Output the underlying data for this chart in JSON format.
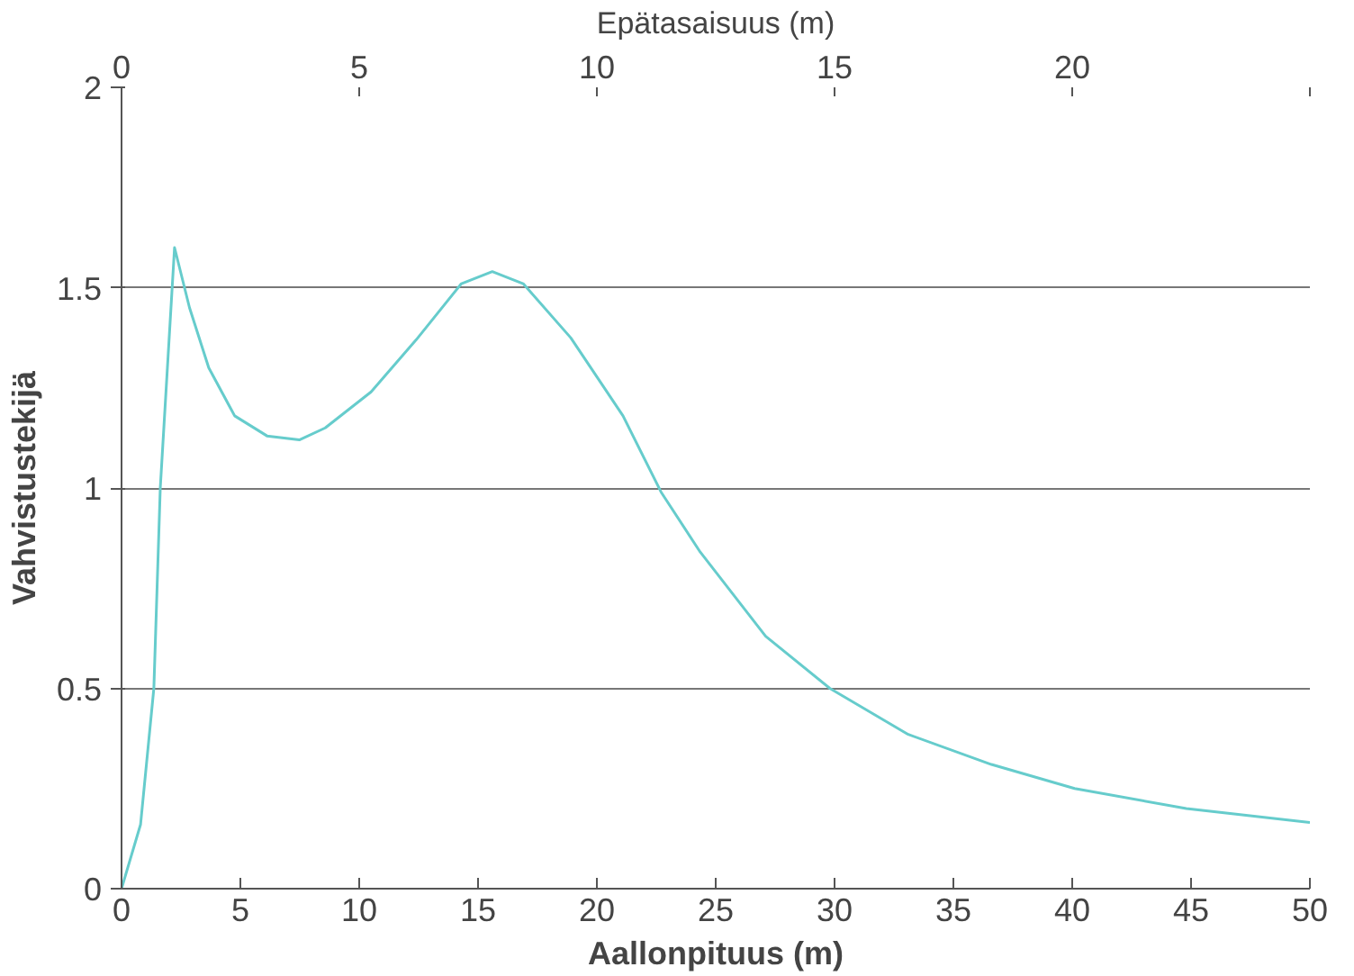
{
  "chart_data": {
    "type": "line",
    "xlabel": "Aallonpituus (m)",
    "x2label": "Epätasaisuus (m)",
    "ylabel": "Vahvistustekijä",
    "xlim": [
      0,
      50
    ],
    "xticks": [
      0,
      5,
      10,
      15,
      20,
      25,
      30,
      35,
      40,
      45,
      50
    ],
    "x2lim": [
      0,
      25
    ],
    "x2ticks": [
      0,
      5,
      10,
      15,
      20,
      {
        "value": 25,
        "label": null
      }
    ],
    "ylim": [
      0,
      2
    ],
    "yticks": [
      0,
      0.5,
      1,
      1.5,
      2
    ],
    "grid": "y",
    "marker": "none",
    "line_style": "solid",
    "series": [
      {
        "color": "#66cccc",
        "x": [
          0,
          0.8,
          1.36,
          1.63,
          2.23,
          2.86,
          3.67,
          4.76,
          6.12,
          7.48,
          8.57,
          10.5,
          12.4,
          14.3,
          15.6,
          16.9,
          18.9,
          21.1,
          22.7,
          24.35,
          27.1,
          29.8,
          33.1,
          36.6,
          40.1,
          44.8,
          50
        ],
        "values": [
          0,
          0.16,
          0.5,
          1.0,
          1.6,
          1.45,
          1.3,
          1.18,
          1.13,
          1.12,
          1.15,
          1.24,
          1.37,
          1.51,
          1.54,
          1.51,
          1.375,
          1.18,
          0.99,
          0.84,
          0.63,
          0.5,
          0.385,
          0.31,
          0.25,
          0.2,
          0.165
        ]
      }
    ]
  }
}
